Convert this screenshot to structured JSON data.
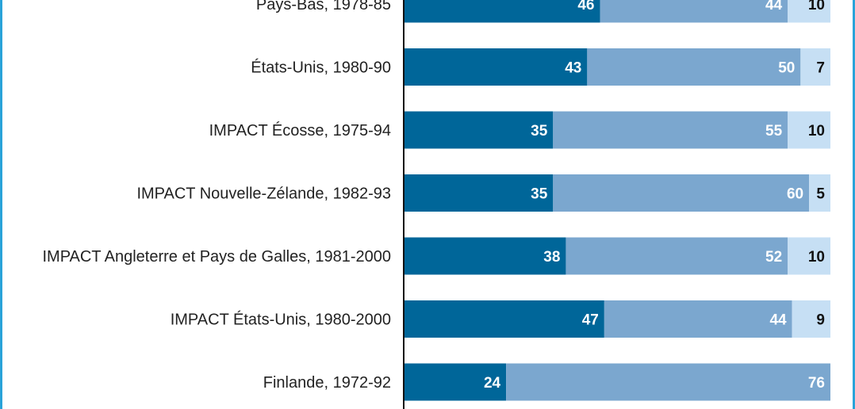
{
  "chart_data": {
    "type": "bar",
    "stacked": true,
    "orientation": "horizontal",
    "categories": [
      "Pays-Bas, 1978-85",
      "États-Unis, 1980-90",
      "IMPACT Écosse, 1975-94",
      "IMPACT Nouvelle-Zélande, 1982-93",
      "IMPACT Angleterre et Pays de Galles, 1981-2000",
      "IMPACT États-Unis, 1980-2000",
      "Finlande, 1972-92"
    ],
    "series": [
      {
        "color": "#006699",
        "label_color": "#ffffff",
        "values": [
          46,
          43,
          35,
          35,
          38,
          47,
          24
        ]
      },
      {
        "color": "#7ba7cf",
        "label_color": "#ffffff",
        "values": [
          44,
          50,
          55,
          60,
          52,
          44,
          76
        ]
      },
      {
        "color": "#c6dff4",
        "label_color": "#111111",
        "values": [
          10,
          7,
          10,
          5,
          10,
          9,
          null
        ]
      }
    ],
    "xlim": [
      0,
      100
    ],
    "grid": false
  }
}
